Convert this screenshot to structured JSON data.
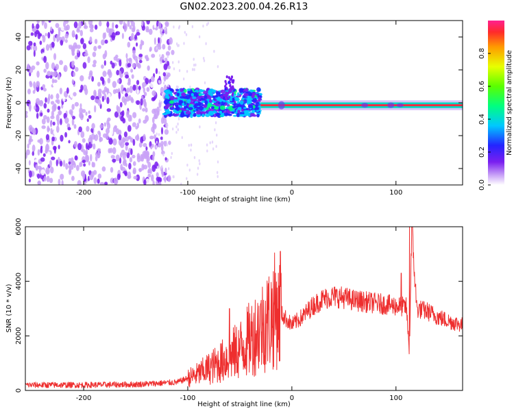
{
  "title": "GN02.2023.200.04.26.R13",
  "colors": {
    "line": "#ee2e2e",
    "axis": "#000000",
    "spec_dark": "#7a1ff0",
    "spec_light": "#d4b8f8"
  },
  "chart_data": [
    {
      "type": "heatmap",
      "title": "GN02.2023.200.04.26.R13",
      "xlabel": "Height of straight line (km)",
      "ylabel": "Frequency (Hz)",
      "xlim": [
        -256,
        164
      ],
      "ylim": [
        -50,
        50
      ],
      "xticks": [
        -200,
        -100,
        0,
        100
      ],
      "yticks": [
        -40,
        -20,
        0,
        20,
        40
      ],
      "colorbar": {
        "label": "Normalized spectral amplitude",
        "range": [
          0,
          1
        ],
        "ticks": [
          0.0,
          0.2,
          0.4,
          0.6,
          0.8
        ],
        "colormap": "rainbow"
      },
      "regions": [
        {
          "x": [
            -256,
            -120
          ],
          "freq": [
            -50,
            50
          ],
          "amplitude": "low, scattered noise (0.05–0.2)"
        },
        {
          "x": [
            -120,
            -30
          ],
          "freq": [
            -8,
            10
          ],
          "amplitude": "0.2–0.5 broadband"
        },
        {
          "x": [
            -65,
            -55
          ],
          "freq": [
            0,
            17
          ],
          "amplitude": "0.1–0.3 spike"
        },
        {
          "x": [
            -30,
            164
          ],
          "freq": [
            -3,
            0
          ],
          "amplitude": "0.8–1.0 narrow tone near -1.5 Hz"
        }
      ]
    },
    {
      "type": "line",
      "xlabel": "Height of straight line (km)",
      "ylabel": "SNR (10 * v/v)",
      "xlim": [
        -256,
        164
      ],
      "ylim": [
        0,
        6000
      ],
      "xticks": [
        -200,
        -100,
        0,
        100
      ],
      "yticks": [
        0,
        2000,
        4000,
        6000
      ],
      "series": [
        {
          "x": [
            -256,
            -200,
            -150,
            -110,
            -100,
            -90,
            -80,
            -70,
            -60,
            -50,
            -40,
            -30,
            -20,
            -15,
            -10,
            0,
            10,
            20,
            30,
            40,
            50,
            60,
            70,
            80,
            90,
            100,
            110,
            113,
            115,
            120,
            130,
            140,
            150,
            164
          ],
          "values": [
            200,
            200,
            220,
            300,
            450,
            600,
            800,
            1000,
            1250,
            1500,
            1900,
            2300,
            2700,
            3000,
            2800,
            2400,
            2700,
            3100,
            3350,
            3450,
            3400,
            3300,
            3250,
            3200,
            3150,
            3100,
            3050,
            1300,
            6000,
            3000,
            2900,
            2700,
            2550,
            2400
          ],
          "spikes": [
            {
              "x": -60,
              "value": 3000
            },
            {
              "x": -13,
              "value": 4300
            },
            {
              "x": -11,
              "value": 5100
            },
            {
              "x": 105,
              "value": 4300
            },
            {
              "x": 113,
              "value": 6000
            }
          ]
        }
      ]
    }
  ]
}
